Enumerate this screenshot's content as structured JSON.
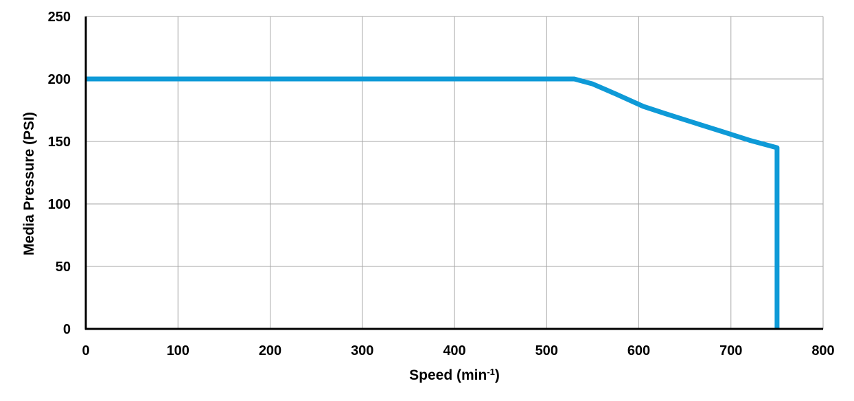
{
  "chart_data": {
    "type": "line",
    "xlabel": "Speed (min",
    "xlabel_sup": "-1",
    "xlabel_end": ")",
    "ylabel": "Media Pressure (PSI)",
    "xlim": [
      0,
      800
    ],
    "ylim": [
      0,
      250
    ],
    "xticks": [
      0,
      100,
      200,
      300,
      400,
      500,
      600,
      700,
      800
    ],
    "yticks": [
      0,
      50,
      100,
      150,
      200,
      250
    ],
    "grid": true,
    "series": [
      {
        "color": "#0e9ad7",
        "x": [
          0,
          530,
          550,
          575,
          605,
          630,
          660,
          690,
          720,
          750,
          750
        ],
        "y": [
          200,
          200,
          196,
          188,
          178,
          172,
          165,
          158,
          151,
          145,
          0
        ]
      }
    ]
  }
}
